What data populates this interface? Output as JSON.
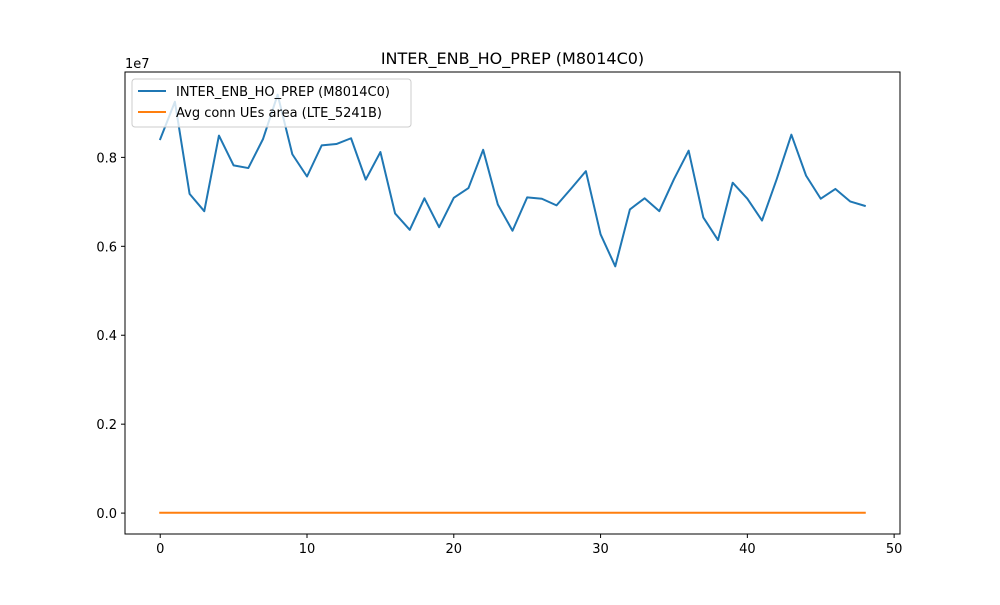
{
  "chart_data": {
    "type": "line",
    "title": "INTER_ENB_HO_PREP (M8014C0)",
    "xlabel": "",
    "ylabel": "",
    "y_offset_label": "1e7",
    "x_ticks": [
      0,
      10,
      20,
      30,
      40,
      50
    ],
    "y_ticks": [
      0.0,
      0.2,
      0.4,
      0.6,
      0.8
    ],
    "x_tick_labels": [
      "0",
      "10",
      "20",
      "30",
      "40",
      "50"
    ],
    "y_tick_labels": [
      "0.0",
      "0.2",
      "0.4",
      "0.6",
      "0.8"
    ],
    "xlim": [
      -2.4,
      50.4
    ],
    "ylim": [
      -0.047,
      0.992
    ],
    "grid": false,
    "legend_position": "top-left",
    "x": [
      0,
      1,
      2,
      3,
      4,
      5,
      6,
      7,
      8,
      9,
      10,
      11,
      12,
      13,
      14,
      15,
      16,
      17,
      18,
      19,
      20,
      21,
      22,
      23,
      24,
      25,
      26,
      27,
      28,
      29,
      30,
      31,
      32,
      33,
      34,
      35,
      36,
      37,
      38,
      39,
      40,
      41,
      42,
      43,
      44,
      45,
      46,
      47,
      48
    ],
    "series": [
      {
        "name": "INTER_ENB_HO_PREP (M8014C0)",
        "color": "#1f77b4",
        "values": [
          0.841,
          0.925,
          0.718,
          0.679,
          0.849,
          0.782,
          0.776,
          0.841,
          0.941,
          0.807,
          0.757,
          0.827,
          0.83,
          0.843,
          0.75,
          0.812,
          0.674,
          0.637,
          0.708,
          0.643,
          0.709,
          0.731,
          0.817,
          0.694,
          0.635,
          0.71,
          0.707,
          0.692,
          0.73,
          0.769,
          0.627,
          0.555,
          0.683,
          0.708,
          0.679,
          0.751,
          0.815,
          0.665,
          0.614,
          0.743,
          0.707,
          0.658,
          0.751,
          0.851,
          0.759,
          0.707,
          0.729,
          0.701,
          0.691
        ]
      },
      {
        "name": "Avg conn UEs area (LTE_5241B)",
        "color": "#ff7f0e",
        "values": [
          0.0008,
          0.0008,
          0.0008,
          0.0007,
          0.0008,
          0.0008,
          0.0008,
          0.0008,
          0.0008,
          0.0008,
          0.0008,
          0.0008,
          0.0008,
          0.0008,
          0.0007,
          0.0007,
          0.0007,
          0.0007,
          0.0007,
          0.0007,
          0.0007,
          0.0007,
          0.0007,
          0.0007,
          0.0007,
          0.0007,
          0.0007,
          0.0007,
          0.0007,
          0.0007,
          0.0007,
          0.0007,
          0.0007,
          0.0007,
          0.0007,
          0.0007,
          0.0007,
          0.0007,
          0.0007,
          0.0007,
          0.0007,
          0.0007,
          0.0007,
          0.0007,
          0.0007,
          0.0007,
          0.0007,
          0.0007,
          0.0007
        ]
      }
    ]
  }
}
